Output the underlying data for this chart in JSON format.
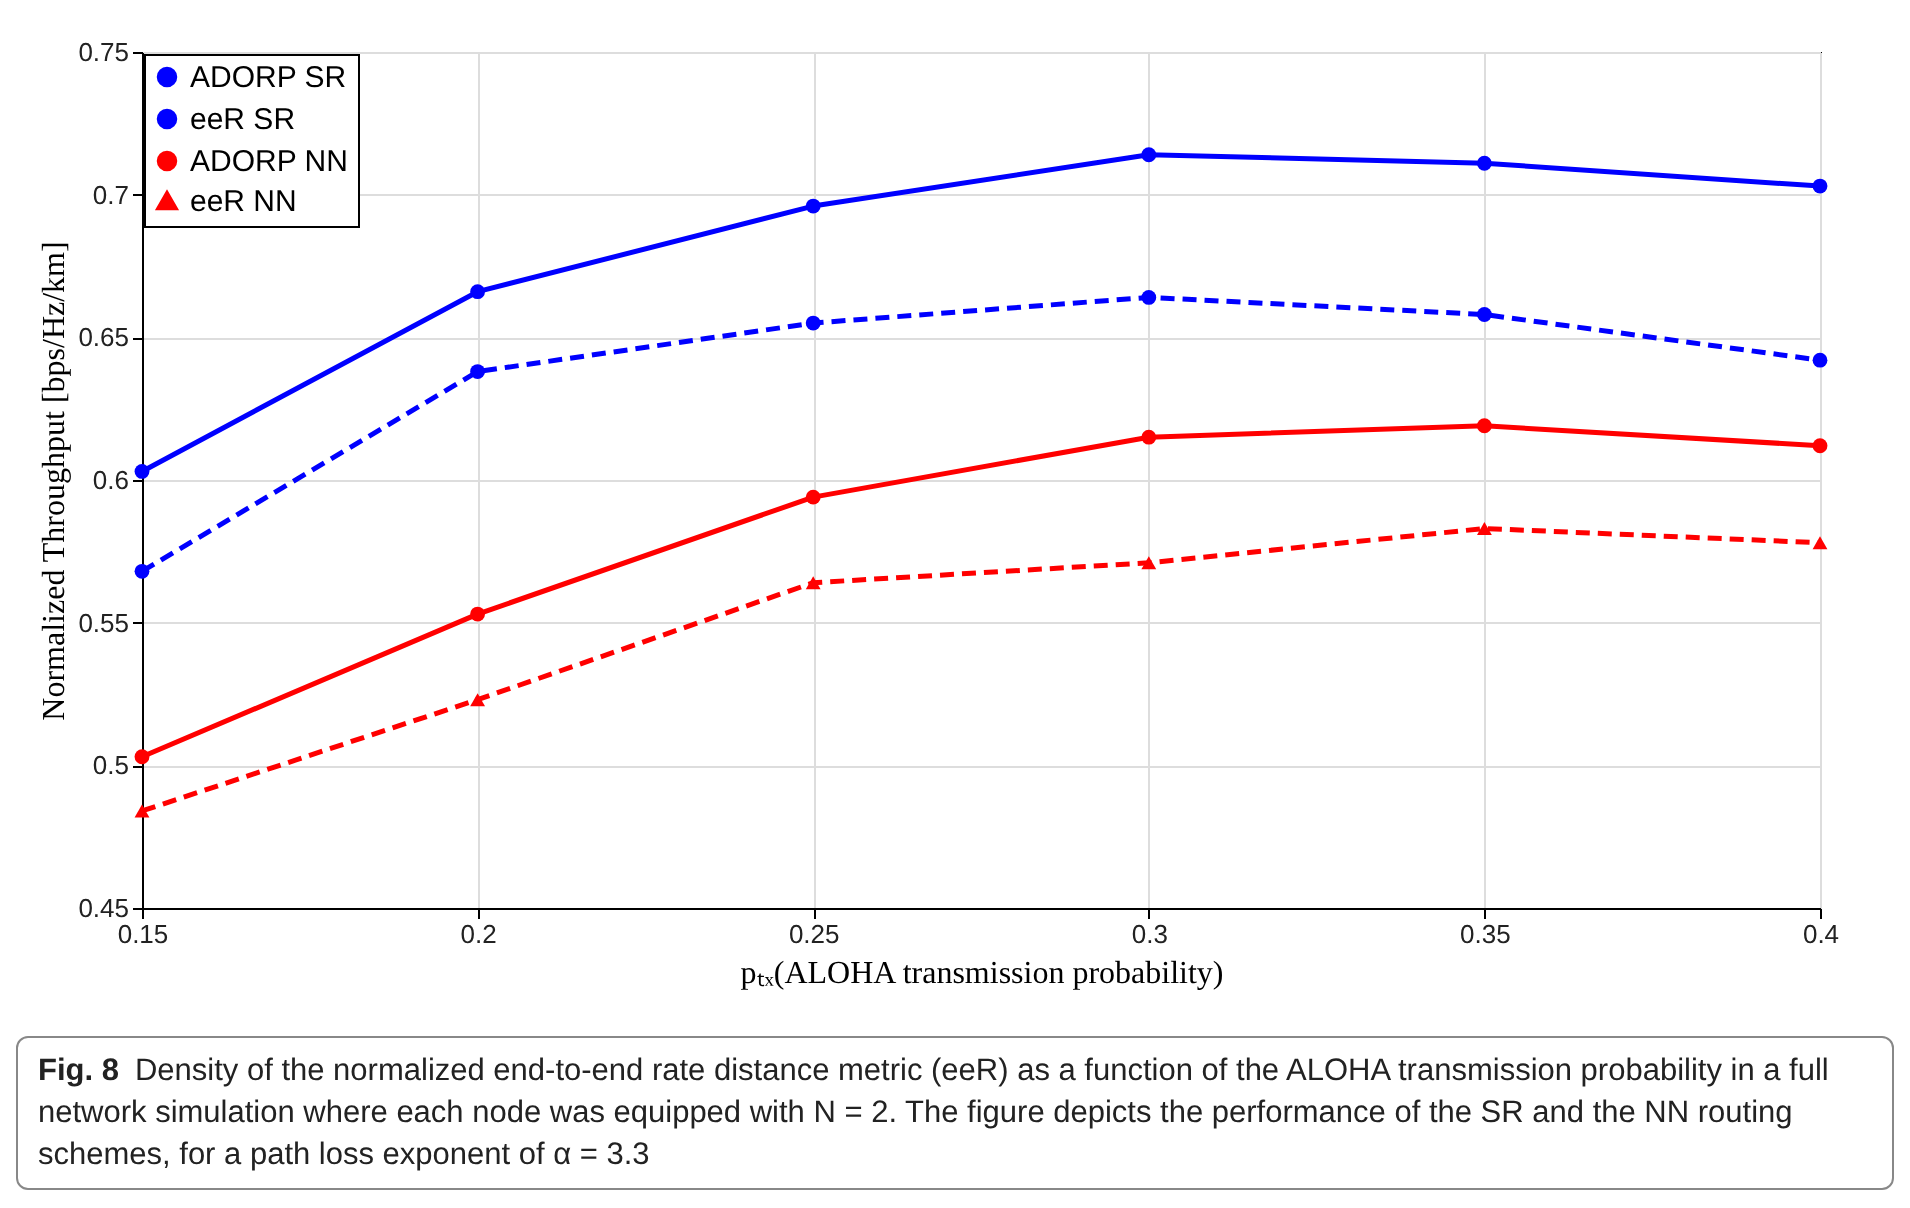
{
  "chart_data": {
    "type": "line",
    "xlabel": "pₜₓ(ALOHA transmission probability)",
    "ylabel": "Normalized Throughput [bps/Hz/km]",
    "x": [
      0.15,
      0.2,
      0.25,
      0.3,
      0.35,
      0.4
    ],
    "series": [
      {
        "name": "ADORP SR",
        "color": "#0000ff",
        "marker": "circle",
        "line_style": "solid",
        "values": [
          0.603,
          0.666,
          0.696,
          0.714,
          0.711,
          0.703
        ]
      },
      {
        "name": "eeR SR",
        "color": "#0000ff",
        "marker": "circle",
        "line_style": "dashed",
        "values": [
          0.568,
          0.638,
          0.655,
          0.664,
          0.658,
          0.642
        ]
      },
      {
        "name": "ADORP NN",
        "color": "#ff0000",
        "marker": "circle",
        "line_style": "solid",
        "values": [
          0.503,
          0.553,
          0.594,
          0.615,
          0.619,
          0.612
        ]
      },
      {
        "name": "eeR NN",
        "color": "#ff0000",
        "marker": "triangle",
        "line_style": "dashed",
        "values": [
          0.484,
          0.523,
          0.564,
          0.571,
          0.583,
          0.578
        ]
      }
    ],
    "xlim": [
      0.15,
      0.4
    ],
    "xticks": [
      0.15,
      0.2,
      0.25,
      0.3,
      0.35,
      0.4
    ],
    "ylim": [
      0.45,
      0.75
    ],
    "yticks": [
      0.45,
      0.5,
      0.55,
      0.6,
      0.65,
      0.7,
      0.75
    ],
    "grid": true,
    "legend": "top left",
    "annotations": [
      "Fig. 8",
      "Density of the normalized end-to-end rate distance metric (eeR) as a function of the ALOHA transmission probability in a full network simulation where each node was equipped with N = 2. The figure depicts the performance of the SR and the NN routing schemes, for a path loss exponent of α = 3.3"
    ]
  }
}
